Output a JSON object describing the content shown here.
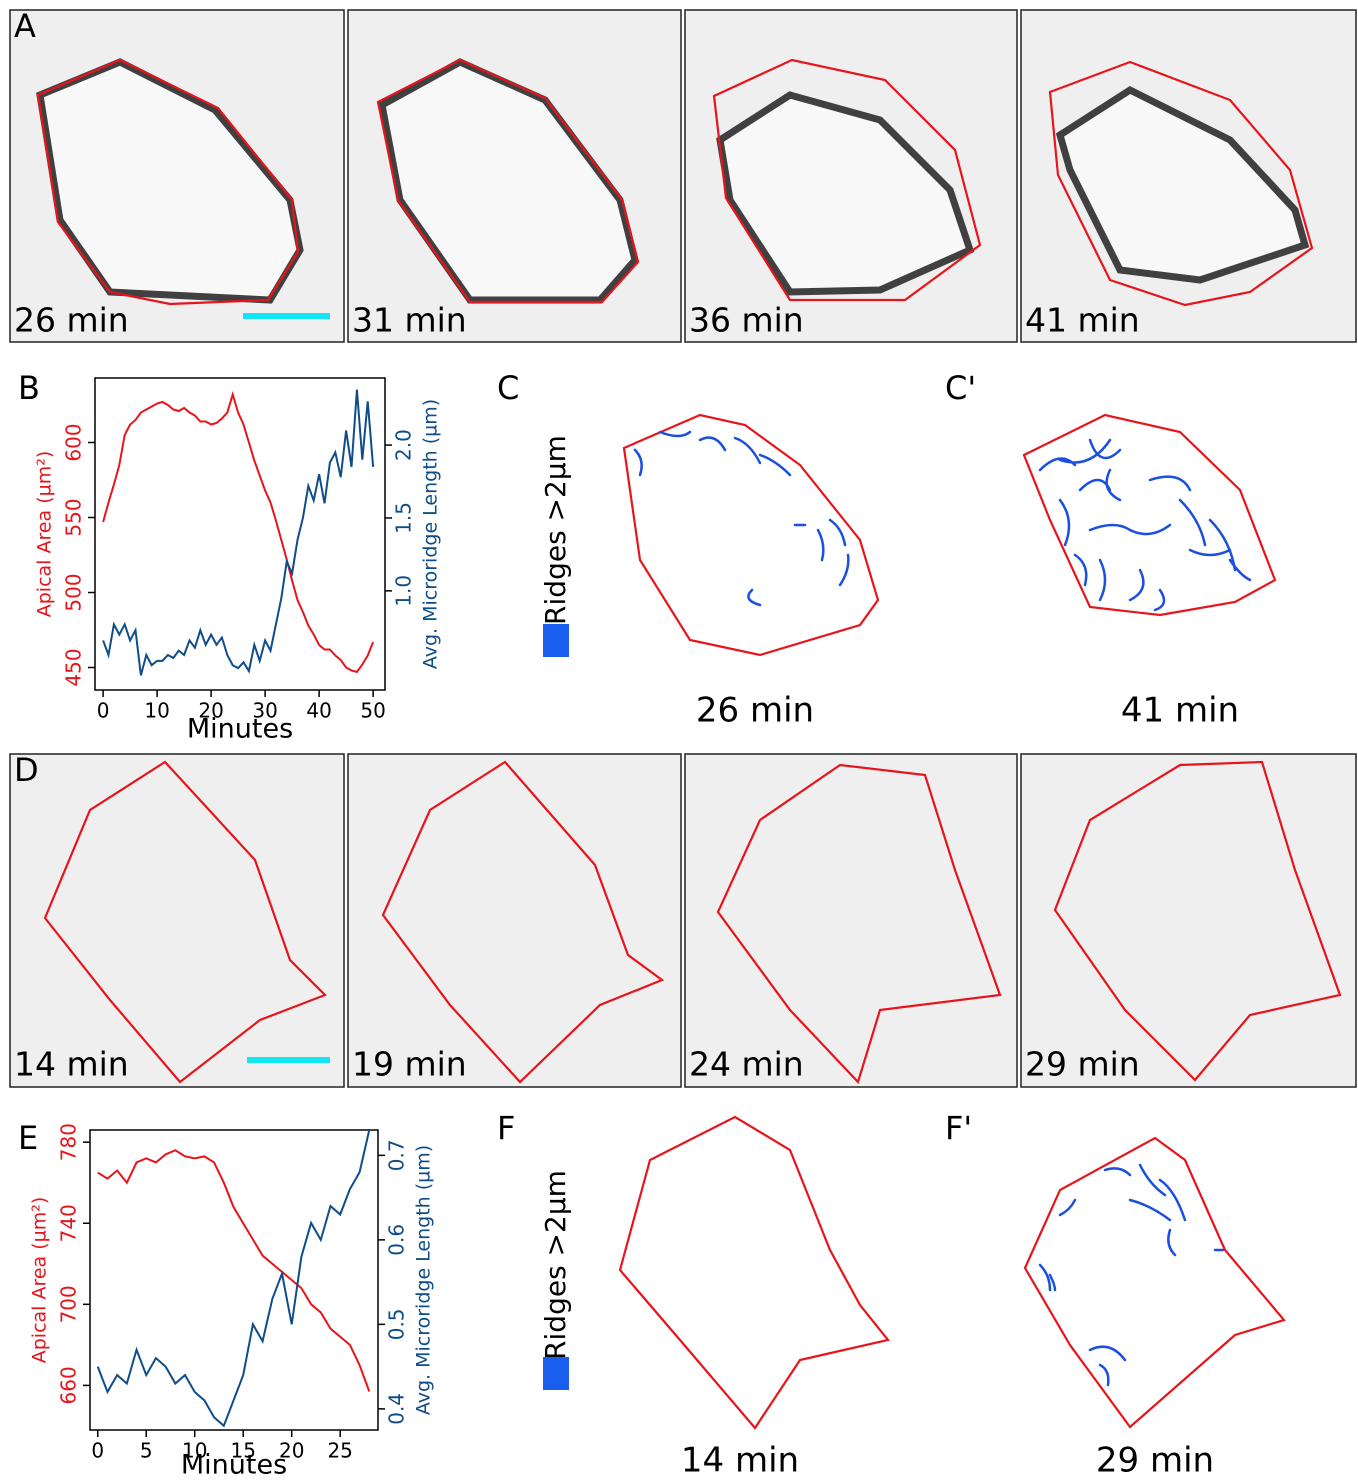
{
  "panels": {
    "A": {
      "label": "A",
      "times": [
        "26 min",
        "31 min",
        "36 min",
        "41 min"
      ]
    },
    "C": {
      "label": "C",
      "side_label": "Ridges >2µm",
      "time": "26 min"
    },
    "C_prime": {
      "label": "C'",
      "time": "41 min"
    },
    "D": {
      "label": "D",
      "times": [
        "14 min",
        "19 min",
        "24 min",
        "29 min"
      ]
    },
    "F": {
      "label": "F",
      "side_label": "Ridges >2µm",
      "time": "14 min"
    },
    "F_prime": {
      "label": "F'",
      "time": "29 min"
    }
  },
  "chart_data": [
    {
      "type": "line",
      "label": "B",
      "xlabel": "Minutes",
      "ylabel": "Apical Area (µm²)",
      "y2label": "Avg. Microridge Length (µm)",
      "x": [
        0,
        1,
        2,
        3,
        4,
        5,
        6,
        7,
        8,
        9,
        10,
        11,
        12,
        13,
        14,
        15,
        16,
        17,
        18,
        19,
        20,
        21,
        22,
        23,
        24,
        25,
        26,
        27,
        28,
        29,
        30,
        31,
        32,
        33,
        34,
        35,
        36,
        37,
        38,
        39,
        40,
        41,
        42,
        43,
        44,
        45,
        46,
        47,
        48,
        49,
        50
      ],
      "xlim": [
        -1.5,
        52.2
      ],
      "xticks": [
        0,
        10,
        20,
        30,
        40,
        50
      ],
      "ylim": [
        435,
        643
      ],
      "yticks": [
        450,
        500,
        550,
        600
      ],
      "y2lim": [
        0.32,
        2.46
      ],
      "y2ticks": [
        {
          "value": 1,
          "label": "1.0"
        },
        1.5,
        {
          "value": 2,
          "label": "2.0"
        }
      ],
      "series": [
        {
          "color": "#e8141b",
          "axis": "y",
          "values": [
            547,
            560,
            572,
            585,
            605,
            612,
            615,
            620,
            622,
            624,
            626,
            627,
            625,
            622,
            621,
            623,
            620,
            618,
            614,
            614,
            612,
            613,
            616,
            620,
            632,
            620,
            612,
            600,
            588,
            578,
            568,
            560,
            548,
            535,
            522,
            508,
            495,
            487,
            478,
            472,
            465,
            462,
            462,
            458,
            455,
            450,
            448,
            447,
            452,
            458,
            467
          ]
        },
        {
          "color": "#0f4d8a",
          "axis": "y2",
          "values": [
            0.66,
            0.56,
            0.77,
            0.7,
            0.77,
            0.66,
            0.73,
            0.42,
            0.56,
            0.49,
            0.52,
            0.52,
            0.56,
            0.54,
            0.59,
            0.56,
            0.66,
            0.61,
            0.73,
            0.63,
            0.7,
            0.63,
            0.68,
            0.56,
            0.49,
            0.47,
            0.51,
            0.45,
            0.63,
            0.52,
            0.66,
            0.59,
            0.77,
            0.95,
            1.2,
            1.12,
            1.35,
            1.5,
            1.72,
            1.62,
            1.8,
            1.6,
            1.88,
            1.95,
            1.78,
            2.1,
            1.85,
            2.38,
            1.9,
            2.3,
            1.85
          ]
        }
      ]
    },
    {
      "type": "line",
      "label": "E",
      "xlabel": "Minutes",
      "ylabel": "Apical Area (µm²)",
      "y2label": "Avg. Microridge Length (µm)",
      "x": [
        0,
        1,
        2,
        3,
        4,
        5,
        6,
        7,
        8,
        9,
        10,
        11,
        12,
        13,
        14,
        15,
        16,
        17,
        18,
        19,
        20,
        21,
        22,
        23,
        24,
        25,
        26,
        27,
        28
      ],
      "xlim": [
        -0.8,
        28.9
      ],
      "xticks": [
        0,
        5,
        10,
        15,
        20,
        25
      ],
      "ylim": [
        638,
        786
      ],
      "yticks": [
        660,
        700,
        740,
        780
      ],
      "y2lim": [
        0.375,
        0.73
      ],
      "y2ticks": [
        0.4,
        0.5,
        0.6,
        0.7
      ],
      "series": [
        {
          "color": "#e8141b",
          "axis": "y",
          "values": [
            765,
            762,
            766,
            760,
            770,
            772,
            770,
            774,
            776,
            773,
            772,
            773,
            770,
            760,
            748,
            740,
            732,
            724,
            720,
            716,
            712,
            708,
            700,
            696,
            688,
            684,
            680,
            670,
            657
          ]
        },
        {
          "color": "#0f4d8a",
          "axis": "y2",
          "values": [
            0.45,
            0.42,
            0.44,
            0.43,
            0.47,
            0.44,
            0.46,
            0.45,
            0.43,
            0.44,
            0.42,
            0.41,
            0.39,
            0.38,
            0.41,
            0.44,
            0.5,
            0.48,
            0.53,
            0.56,
            0.5,
            0.58,
            0.62,
            0.6,
            0.64,
            0.63,
            0.66,
            0.68,
            0.73
          ]
        }
      ]
    }
  ]
}
